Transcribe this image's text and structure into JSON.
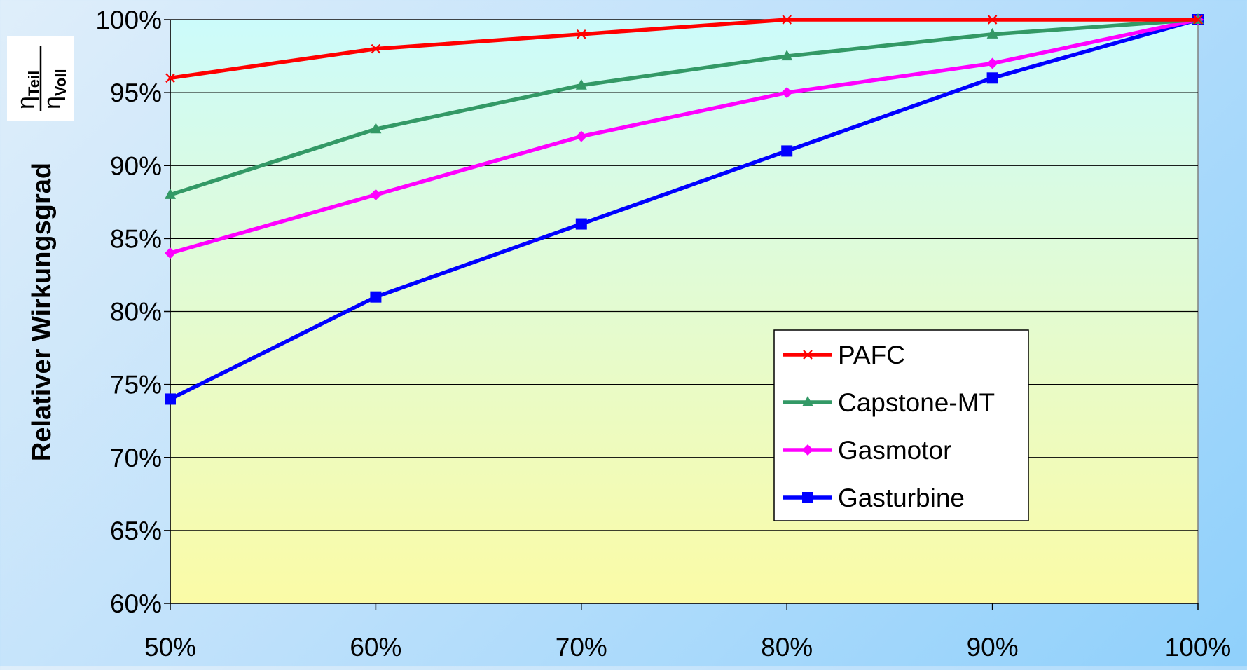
{
  "chart_data": {
    "type": "line",
    "title": "",
    "ylabel": "Relativer Wirkungsgrad",
    "ylabel_formula": {
      "numerator_symbol": "η",
      "numerator_subscript": "Teil",
      "denominator_symbol": "η",
      "denominator_subscript": "Voll"
    },
    "xlabel": "",
    "categories": [
      "50%",
      "60%",
      "70%",
      "80%",
      "90%",
      "100%"
    ],
    "x": [
      50,
      60,
      70,
      80,
      90,
      100
    ],
    "ylim": [
      60,
      100
    ],
    "y_ticks": [
      60,
      65,
      70,
      75,
      80,
      85,
      90,
      95,
      100
    ],
    "y_tick_labels": [
      "60%",
      "65%",
      "70%",
      "75%",
      "80%",
      "85%",
      "90%",
      "95%",
      "100%"
    ],
    "grid": true,
    "legend": "lower-right",
    "plot_background": {
      "top": "#ccfbfb",
      "bottom": "#fbfba6"
    },
    "series": [
      {
        "name": "PAFC",
        "color": "#ff0000",
        "marker": "x",
        "values": [
          96,
          98,
          99,
          100,
          100,
          100
        ]
      },
      {
        "name": "Capstone-MT",
        "color": "#339966",
        "marker": "triangle",
        "values": [
          88,
          92.5,
          95.5,
          97.5,
          99,
          100
        ]
      },
      {
        "name": "Gasmotor",
        "color": "#ff00ff",
        "marker": "diamond",
        "values": [
          84,
          88,
          92,
          95,
          97,
          100
        ]
      },
      {
        "name": "Gasturbine",
        "color": "#0000ff",
        "marker": "square",
        "values": [
          74,
          81,
          86,
          91,
          96,
          100
        ]
      }
    ]
  }
}
